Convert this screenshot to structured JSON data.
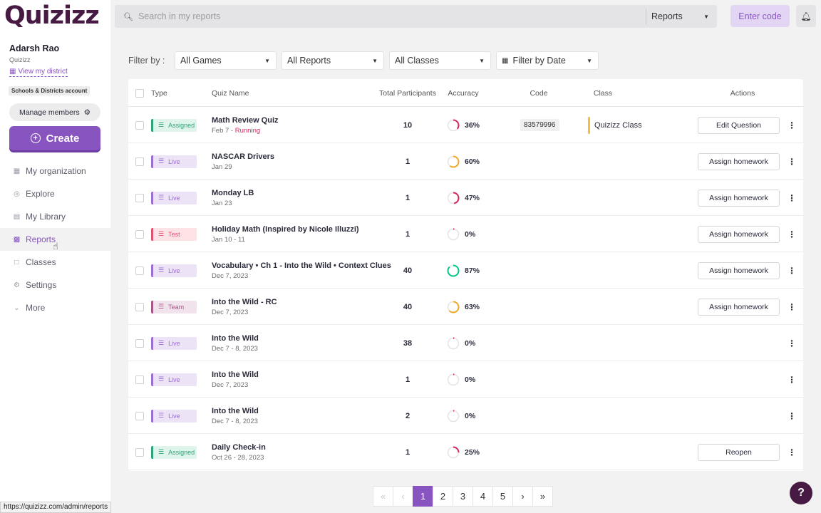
{
  "sidebar": {
    "logo": "Quizizz",
    "user_name": "Adarsh Rao",
    "user_org": "Quizizz",
    "district_link": "View my district",
    "account_badge": "Schools & Districts account",
    "manage_members": "Manage members",
    "create": "Create",
    "nav": [
      {
        "label": "My organization",
        "icon": "organization-icon"
      },
      {
        "label": "Explore",
        "icon": "explore-icon"
      },
      {
        "label": "My Library",
        "icon": "library-icon"
      },
      {
        "label": "Reports",
        "icon": "reports-icon",
        "active": true
      },
      {
        "label": "Classes",
        "icon": "classes-icon"
      },
      {
        "label": "Settings",
        "icon": "settings-icon"
      },
      {
        "label": "More",
        "icon": "chevron-down-icon"
      }
    ]
  },
  "topbar": {
    "search_placeholder": "Search in my reports",
    "search_scope": "Reports",
    "enter_code": "Enter code"
  },
  "filters": {
    "label": "Filter by :",
    "games": "All Games",
    "reports": "All Reports",
    "classes": "All Classes",
    "date": "Filter by Date"
  },
  "table": {
    "headers": {
      "type": "Type",
      "quiz_name": "Quiz Name",
      "participants": "Total Participants",
      "accuracy": "Accuracy",
      "code": "Code",
      "class": "Class",
      "actions": "Actions"
    },
    "rows": [
      {
        "type": "Assigned",
        "type_class": "assigned",
        "name": "Math Review Quiz",
        "date": "Feb 7 - ",
        "status": "Running",
        "participants": "10",
        "accuracy": "36%",
        "accuracy_value": 36,
        "code": "83579996",
        "class": "Quizizz Class",
        "action": "Edit Question"
      },
      {
        "type": "Live",
        "type_class": "live",
        "name": "NASCAR Drivers",
        "date": "Jan 29",
        "status": "",
        "participants": "1",
        "accuracy": "60%",
        "accuracy_value": 60,
        "code": "",
        "class": "",
        "action": "Assign homework"
      },
      {
        "type": "Live",
        "type_class": "live",
        "name": "Monday LB",
        "date": "Jan 23",
        "status": "",
        "participants": "1",
        "accuracy": "47%",
        "accuracy_value": 47,
        "code": "",
        "class": "",
        "action": "Assign homework"
      },
      {
        "type": "Test",
        "type_class": "test",
        "name": "Holiday Math (Inspired by Nicole Illuzzi)",
        "date": "Jan 10 - 11",
        "status": "",
        "participants": "1",
        "accuracy": "0%",
        "accuracy_value": 0,
        "code": "",
        "class": "",
        "action": "Assign homework"
      },
      {
        "type": "Live",
        "type_class": "live",
        "name": "Vocabulary • Ch 1 - Into the Wild • Context Clues",
        "date": "Dec 7, 2023",
        "status": "",
        "participants": "40",
        "accuracy": "87%",
        "accuracy_value": 87,
        "code": "",
        "class": "",
        "action": "Assign homework"
      },
      {
        "type": "Team",
        "type_class": "team",
        "name": "Into the Wild - RC",
        "date": "Dec 7, 2023",
        "status": "",
        "participants": "40",
        "accuracy": "63%",
        "accuracy_value": 63,
        "code": "",
        "class": "",
        "action": "Assign homework"
      },
      {
        "type": "Live",
        "type_class": "live",
        "name": "Into the Wild",
        "date": "Dec 7 - 8, 2023",
        "status": "",
        "participants": "38",
        "accuracy": "0%",
        "accuracy_value": 0,
        "code": "",
        "class": "",
        "action": ""
      },
      {
        "type": "Live",
        "type_class": "live",
        "name": "Into the Wild",
        "date": "Dec 7, 2023",
        "status": "",
        "participants": "1",
        "accuracy": "0%",
        "accuracy_value": 0,
        "code": "",
        "class": "",
        "action": ""
      },
      {
        "type": "Live",
        "type_class": "live",
        "name": "Into the Wild",
        "date": "Dec 7 - 8, 2023",
        "status": "",
        "participants": "2",
        "accuracy": "0%",
        "accuracy_value": 0,
        "code": "",
        "class": "",
        "action": ""
      },
      {
        "type": "Assigned",
        "type_class": "assigned",
        "name": "Daily Check-in",
        "date": "Oct 26 - 28, 2023",
        "status": "",
        "participants": "1",
        "accuracy": "25%",
        "accuracy_value": 25,
        "code": "",
        "class": "",
        "action": "Reopen"
      }
    ]
  },
  "pagination": {
    "first": "«",
    "prev": "‹",
    "pages": [
      "1",
      "2",
      "3",
      "4",
      "5"
    ],
    "current": "1",
    "next": "›",
    "last": "»"
  },
  "status_url": "https://quizizz.com/admin/reports",
  "help": "?",
  "colors": {
    "brand": "#8854c0",
    "logo": "#461a42",
    "running": "#d0285a",
    "acc_low": "#d0285a",
    "acc_mid": "#efa929",
    "acc_high": "#00c985"
  }
}
